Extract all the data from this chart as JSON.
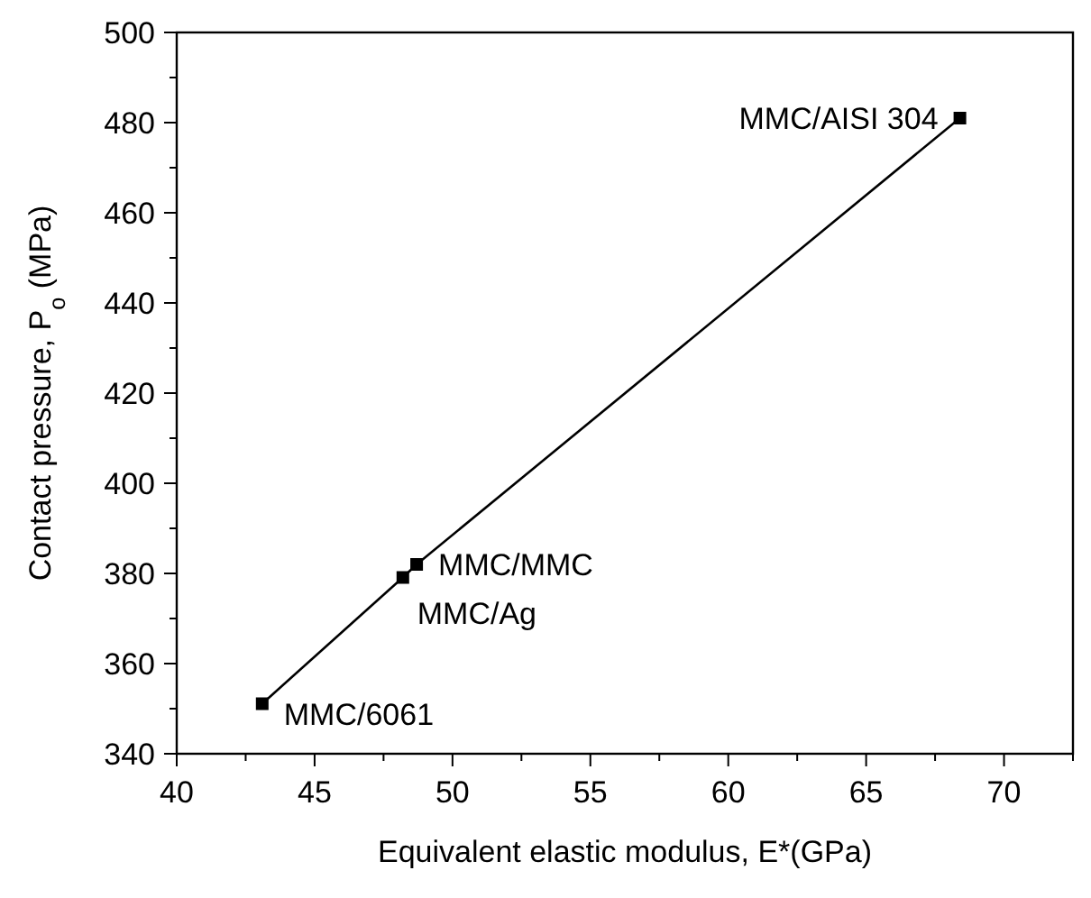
{
  "chart_data": {
    "type": "line",
    "xlabel": "Equivalent elastic modulus, E*(GPa)",
    "ylabel": "Contact pressure, P$_{o}$ (MPa)",
    "x": [
      43.1,
      48.2,
      48.7,
      68.4
    ],
    "series": [
      {
        "color": "#000000",
        "values": [
          351.1,
          379.1,
          382,
          481
        ]
      }
    ],
    "marker": "square",
    "line_style": "solid",
    "grid": false,
    "xlim": [
      40,
      72.5
    ],
    "ylim": [
      340,
      500
    ],
    "xticks": [
      40,
      {
        "value": 42.5,
        "label": null
      },
      45,
      {
        "value": 47.5,
        "label": null
      },
      50,
      {
        "value": 52.5,
        "label": null
      },
      55,
      {
        "value": 57.5,
        "label": null
      },
      60,
      {
        "value": 62.5,
        "label": null
      },
      65,
      {
        "value": 67.5,
        "label": null
      },
      70,
      {
        "value": 72.5,
        "label": null
      }
    ],
    "yticks": [
      340,
      {
        "value": 350,
        "label": null
      },
      360,
      {
        "value": 370,
        "label": null
      },
      380,
      {
        "value": 390,
        "label": null
      },
      400,
      {
        "value": 410,
        "label": null
      },
      420,
      {
        "value": 430,
        "label": null
      },
      440,
      {
        "value": 450,
        "label": null
      },
      460,
      {
        "value": 470,
        "label": null
      },
      480,
      {
        "value": 490,
        "label": null
      },
      500
    ],
    "annotations": [
      {
        "text": "MMC/6061",
        "x": 43.1,
        "y": 351.1
      },
      {
        "text": "MMC/Ag",
        "x": 48.2,
        "y": 379.1
      },
      {
        "text": "MMC/MMC",
        "x": 48.7,
        "y": 382
      },
      {
        "text": "MMC/AISI 304",
        "x": 68.4,
        "y": 481
      }
    ]
  }
}
